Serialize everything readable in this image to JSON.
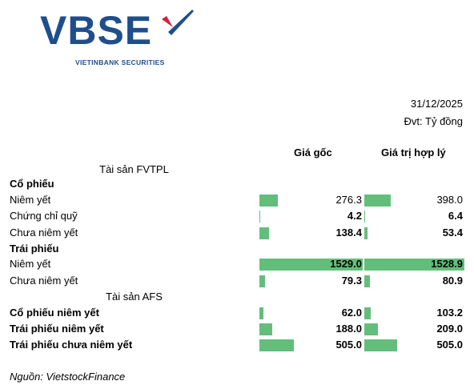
{
  "logo": {
    "name": "VBSE",
    "tagline": "VIETINBANK SECURITIES"
  },
  "date": "31/12/2025",
  "unit": "Đvt: Tỷ đồng",
  "columns": [
    "Giá gốc",
    "Giá trị hợp lý"
  ],
  "rows": [
    [
      "Tài sản FVTPL"
    ],
    [
      "Cổ phiếu"
    ],
    [
      "Niêm yết",
      "276.3",
      "398.0"
    ],
    [
      "Chứng chỉ quỹ",
      "4.2",
      "6.4"
    ],
    [
      "Chưa niêm yết",
      "138.4",
      "53.4"
    ],
    [
      "Trái phiếu"
    ],
    [
      "Niêm yết",
      "1529.0",
      "1528.9"
    ],
    [
      "Chưa niêm yết",
      "79.3",
      "80.9"
    ],
    [
      "Tài sản AFS"
    ],
    [
      "Cổ phiếu niêm yết",
      "62.0",
      "103.2"
    ],
    [
      "Trái phiếu niêm yết",
      "188.0",
      "209.0"
    ],
    [
      "Trái phiếu chưa niêm yết",
      "505.0",
      "505.0"
    ]
  ],
  "source": "Nguồn: VietstockFinance"
}
